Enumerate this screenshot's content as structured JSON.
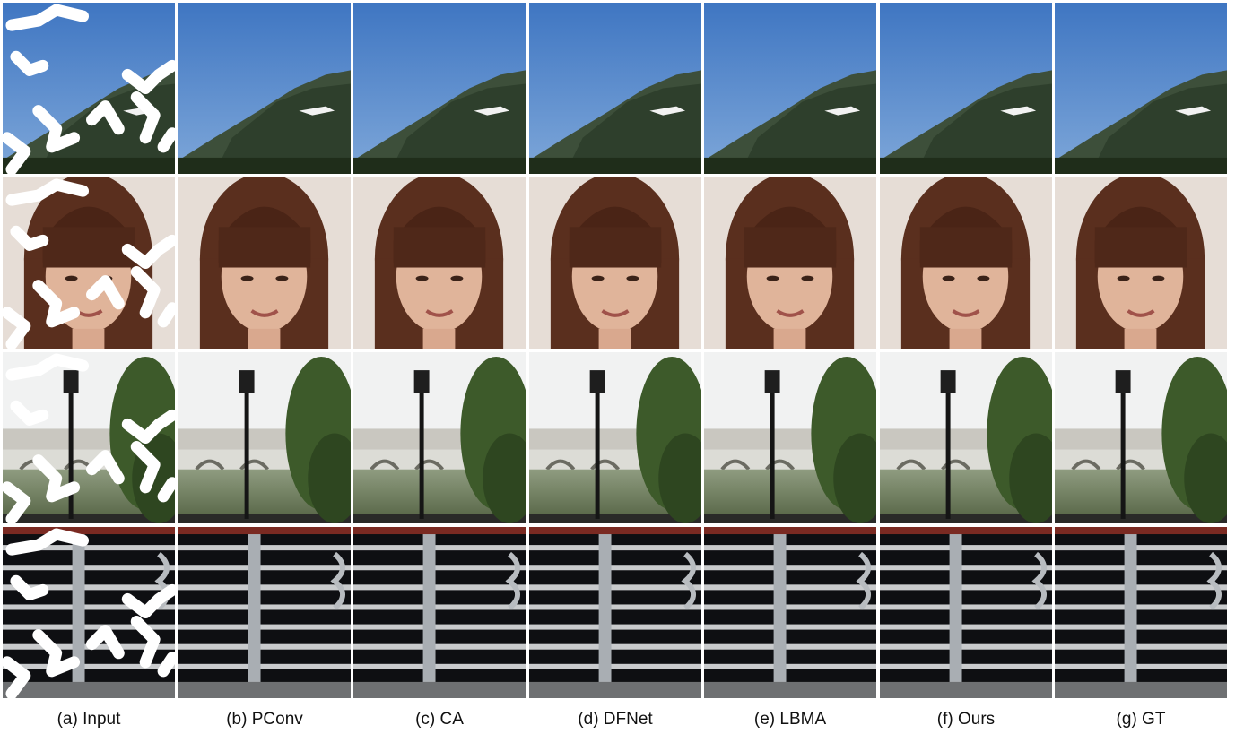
{
  "captions": [
    "(a) Input",
    "(b) PConv",
    "(c) CA",
    "(d) DFNet",
    "(e) LBMA",
    "(f) Ours",
    "(g) GT"
  ]
}
